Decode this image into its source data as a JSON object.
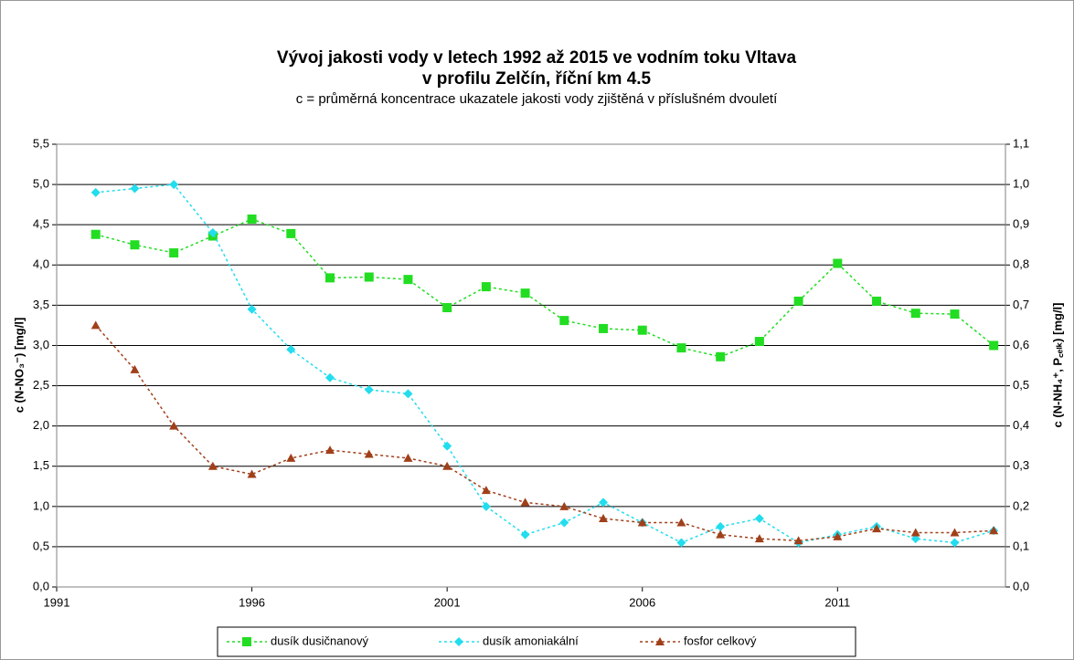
{
  "chart_data": {
    "type": "line",
    "title": "Vývoj jakosti vody v letech 1992 až 2015 ve vodním toku Vltava",
    "title_line2": "v profilu Zelčín, říční km 4.5",
    "subtitle": "c = průměrná koncentrace ukazatele jakosti vody zjištěná v příslušném dvouletí",
    "ylabel": "c (N-NO₃⁻) [mg/l]",
    "y2label": "c (N-NH₄⁺, P꜀ₑₗₖ) [mg/l]",
    "x": [
      1992,
      1993,
      1994,
      1995,
      1996,
      1997,
      1998,
      1999,
      2000,
      2001,
      2002,
      2003,
      2004,
      2005,
      2006,
      2007,
      2008,
      2009,
      2010,
      2011,
      2012,
      2013,
      2014,
      2015
    ],
    "xlim": [
      1991,
      2015.3
    ],
    "xticks": [
      1991,
      1996,
      2001,
      2006,
      2011
    ],
    "ylim": [
      0,
      5.5
    ],
    "yticks": [
      {
        "value": 0,
        "label": "0,0"
      },
      {
        "value": 0.5,
        "label": "0,5"
      },
      {
        "value": 1,
        "label": "1,0"
      },
      {
        "value": 1.5,
        "label": "1,5"
      },
      {
        "value": 2,
        "label": "2,0"
      },
      {
        "value": 2.5,
        "label": "2,5"
      },
      {
        "value": 3,
        "label": "3,0"
      },
      {
        "value": 3.5,
        "label": "3,5"
      },
      {
        "value": 4,
        "label": "4,0"
      },
      {
        "value": 4.5,
        "label": "4,5"
      },
      {
        "value": 5,
        "label": "5,0"
      },
      {
        "value": 5.5,
        "label": "5,5"
      }
    ],
    "y2lim": [
      0,
      1.1
    ],
    "y2ticks": [
      {
        "value": 0,
        "label": "0,0"
      },
      {
        "value": 0.1,
        "label": "0,1"
      },
      {
        "value": 0.2,
        "label": "0,2"
      },
      {
        "value": 0.3,
        "label": "0,3"
      },
      {
        "value": 0.4,
        "label": "0,4"
      },
      {
        "value": 0.5,
        "label": "0,5"
      },
      {
        "value": 0.6,
        "label": "0,6"
      },
      {
        "value": 0.7,
        "label": "0,7"
      },
      {
        "value": 0.8,
        "label": "0,8"
      },
      {
        "value": 0.9,
        "label": "0,9"
      },
      {
        "value": 1,
        "label": "1,0"
      },
      {
        "value": 1.1,
        "label": "1,1"
      }
    ],
    "grid": true,
    "legend": "bottom",
    "series": [
      {
        "name": "dusík dusičnanový",
        "color": "#22dd22",
        "marker": "square",
        "values": [
          4.38,
          4.25,
          4.15,
          4.36,
          4.57,
          4.39,
          3.84,
          3.85,
          3.82,
          3.47,
          3.73,
          3.65,
          3.31,
          3.21,
          3.19,
          2.97,
          2.86,
          3.05,
          3.55,
          4.02,
          3.55,
          3.4,
          3.39,
          3.0
        ]
      },
      {
        "name": "dusík amoniakální",
        "color": "#22ddee",
        "marker": "diamond",
        "axis": "y2",
        "values": [
          0.98,
          0.99,
          1.0,
          0.88,
          0.69,
          0.59,
          0.52,
          0.49,
          0.48,
          0.35,
          0.2,
          0.13,
          0.16,
          0.21,
          0.16,
          0.11,
          0.15,
          0.17,
          0.11,
          0.13,
          0.15,
          0.12,
          0.11,
          0.14
        ]
      },
      {
        "name": "fosfor celkový",
        "color": "#a0401a",
        "marker": "triangle",
        "axis": "y2",
        "values": [
          0.65,
          0.54,
          0.4,
          0.3,
          0.28,
          0.32,
          0.34,
          0.33,
          0.32,
          0.3,
          0.24,
          0.21,
          0.2,
          0.17,
          0.16,
          0.16,
          0.13,
          0.12,
          0.115,
          0.125,
          0.145,
          0.135,
          0.135,
          0.14
        ]
      }
    ]
  }
}
